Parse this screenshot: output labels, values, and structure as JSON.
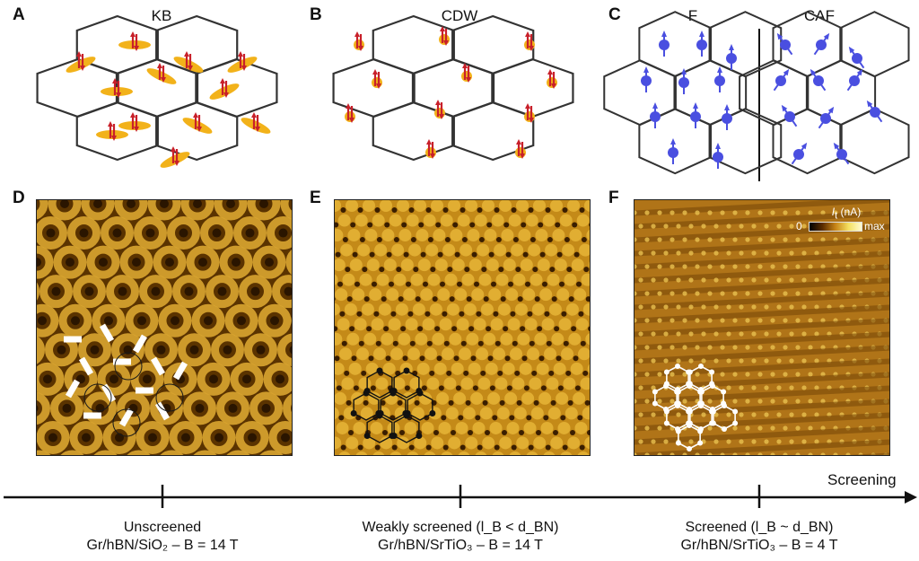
{
  "panels_top": {
    "A": {
      "letter": "A",
      "title": "KB"
    },
    "B": {
      "letter": "B",
      "title": "CDW"
    },
    "C": {
      "letter": "C",
      "title_left": "F",
      "title_right": "CAF"
    }
  },
  "panels_bottom": {
    "D": {
      "letter": "D"
    },
    "E": {
      "letter": "E"
    },
    "F": {
      "letter": "F",
      "colorbar_unit": "(nA)",
      "colorbar_min": "0",
      "colorbar_max": "max"
    }
  },
  "axis": {
    "label": "Screening"
  },
  "ticks": [
    {
      "line1": "Unscreened",
      "line2": "Gr/hBN/SiO₂ – B = 14 T"
    },
    {
      "line1": "Weakly screened (l_B < d_BN)",
      "line2": "Gr/hBN/SrTiO₃ – B = 14 T"
    },
    {
      "line1": "Screened (l_B ~ d_BN)",
      "line2": "Gr/hBN/SrTiO₃ – B = 4 T"
    }
  ],
  "colors": {
    "bond_order": "#f2b21a",
    "spin_red": "#c8202a",
    "spin_blue": "#4a4fe0",
    "stm_dark": "#3a1e00",
    "stm_bright": "#f4d050"
  }
}
